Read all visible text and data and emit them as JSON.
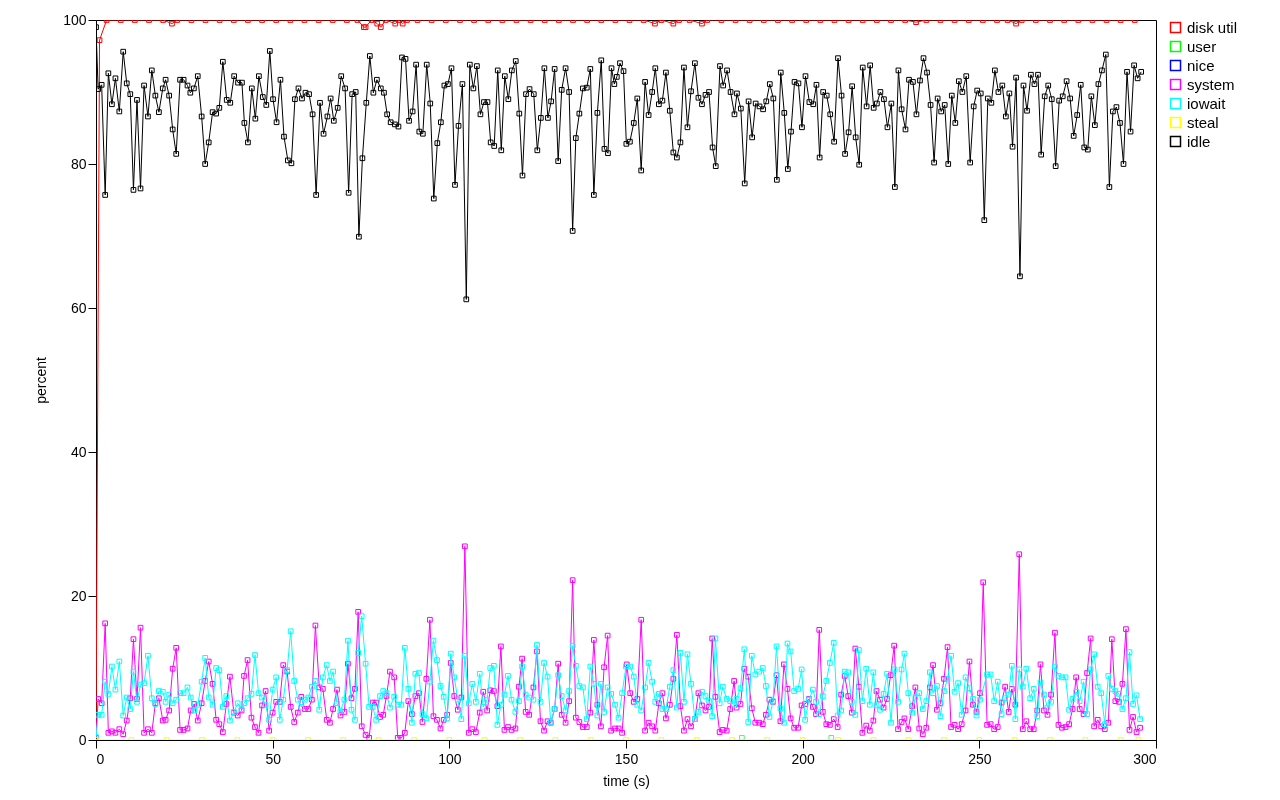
{
  "chart_data": {
    "type": "line",
    "xlabel": "time (s)",
    "ylabel": "percent",
    "xlim": [
      0,
      300
    ],
    "xticks": [
      0,
      50,
      100,
      150,
      200,
      250,
      300
    ],
    "ylim": [
      0,
      100
    ],
    "yticks": [
      0,
      20,
      40,
      60,
      80,
      100
    ],
    "grid": false,
    "legend": "top right",
    "marker": "square",
    "line_style": "solid",
    "series": [
      {
        "name": "disk util",
        "color": "#ff0000",
        "x": [
          0,
          1,
          3,
          7,
          11,
          15,
          19,
          21.5,
          23,
          27,
          31,
          35,
          39,
          43,
          47,
          51,
          55,
          59,
          63,
          67,
          71,
          74,
          75.8,
          76.3,
          78,
          79.6,
          80.6,
          82,
          84.7,
          85.8,
          86.8,
          88,
          91,
          95,
          99,
          103,
          107,
          111,
          115,
          119,
          123,
          127,
          131,
          135,
          139,
          143,
          147,
          151,
          155,
          158.2,
          160,
          163.4,
          165,
          168,
          171.5,
          173,
          177,
          181,
          185,
          189,
          193,
          197,
          201,
          205,
          209,
          213,
          217,
          221,
          225,
          229,
          232.1,
          235,
          239,
          243,
          247,
          251,
          255,
          258,
          260.4,
          262,
          266,
          270,
          274,
          278,
          282,
          286,
          290,
          294
        ],
        "values": [
          0,
          97.2,
          100,
          100,
          100,
          100,
          100,
          99.5,
          100,
          100,
          100,
          100,
          100,
          100,
          100,
          100,
          100,
          100,
          100,
          100,
          100,
          100,
          99,
          99,
          100,
          99.5,
          99,
          100,
          99.5,
          100,
          99.5,
          100,
          100,
          100,
          100,
          100,
          100,
          100,
          100,
          100,
          100,
          100,
          100,
          100,
          100,
          100,
          100,
          100,
          100,
          99.5,
          100,
          99.5,
          100,
          100,
          99.5,
          100,
          100,
          100,
          100,
          100,
          100,
          100,
          100,
          100,
          100,
          100,
          100,
          100,
          100,
          100,
          99.7,
          100,
          100,
          100,
          100,
          100,
          100,
          100,
          99.5,
          100,
          100,
          100,
          100,
          100,
          100,
          100,
          100,
          100
        ]
      },
      {
        "name": "user",
        "color": "#00ff00",
        "type": "scatter",
        "x": [
          182.8,
          195,
          208.1
        ],
        "values": [
          0.3,
          null,
          0.3
        ]
      },
      {
        "name": "nice",
        "color": "#0000ff"
      },
      {
        "name": "system",
        "color": "#ff00ff",
        "x": [
          0,
          0.6,
          1.6,
          2.6,
          3.5,
          4.5,
          5.5,
          6.6,
          7.7,
          8.7,
          9.7,
          10.6,
          11.6,
          12.6,
          13.6,
          14.7,
          15.8,
          16.8,
          17.8,
          18.9,
          19.7,
          20.7,
          21.7,
          22.7,
          23.8,
          24.8,
          25.9,
          26.8,
          27.8,
          28.8,
          29.9,
          30.9,
          31.9,
          33,
          34,
          34.9,
          35.9,
          36.9,
          37.9,
          39,
          40.1,
          41.2,
          41.9,
          42.9,
          44,
          45,
          46,
          47,
          48,
          49,
          50,
          51,
          52,
          53,
          54.1,
          55.1,
          56.1,
          57.1,
          58.1,
          59.1,
          60.1,
          61.1,
          62.1,
          63.2,
          64.2,
          65.3,
          66.2,
          67.1,
          68.2,
          69.2,
          70.3,
          71.3,
          72.3,
          73.3,
          74.2,
          75.2,
          76.3,
          77.3,
          78.3,
          79.3,
          80.4,
          81.3,
          82.2,
          83.2,
          84.4,
          85.4,
          86.4,
          87.4,
          88.4,
          89.4,
          90.4,
          91.4,
          92.4,
          93.5,
          94.5,
          95.5,
          96.5,
          97.5,
          98.4,
          99.4,
          100.4,
          101.4,
          102.4,
          103.4,
          104.4,
          105.5,
          106.5,
          107.5,
          108.6,
          109.6,
          110.7,
          111.6,
          112.6,
          113.6,
          114.6,
          115.6,
          116.6,
          117.6,
          118.7,
          119.7,
          120.6,
          121.6,
          122.6,
          123.8,
          124.8,
          125.8,
          126.8,
          127.8,
          128.7,
          129.8,
          130.8,
          131.8,
          132.9,
          133.9,
          134.9,
          135.8,
          136.8,
          137.8,
          138.9,
          139.9,
          140.9,
          141.9,
          142.9,
          143.8,
          144.8,
          145.8,
          146.9,
          147.9,
          148.9,
          150.2,
          151.2,
          152.2,
          153.2,
          154.3,
          155.4,
          156.4,
          157.4,
          158.3,
          159.3,
          160.3,
          161.3,
          162.4,
          163.4,
          164.4,
          165.4,
          166.4,
          167.4,
          168.4,
          169.5,
          170.5,
          171.5,
          172.5,
          173.5,
          174.4,
          175.3,
          176.5,
          177.4,
          178.5,
          179.5,
          180.6,
          181.3,
          182.4,
          183.5,
          184.6,
          185.6,
          186.6,
          187.7,
          188.7,
          189.6,
          190.6,
          191.6,
          192.6,
          193.7,
          194.7,
          195.7,
          196.6,
          197.6,
          198.7,
          199.7,
          200.7,
          201.8,
          202.9,
          203.8,
          204.7,
          205.7,
          206.7,
          207.7,
          208.8,
          209.9,
          210.9,
          211.9,
          212.9,
          213.9,
          214.9,
          215.9,
          216.9,
          218,
          219,
          220,
          220.9,
          221.9,
          222.9,
          223.9,
          224.9,
          225.9,
          227,
          228,
          228.8,
          229.9,
          231,
          231.9,
          233,
          234,
          235,
          236,
          236.9,
          238,
          239,
          240,
          241,
          242,
          243,
          244,
          245,
          246.1,
          247.2,
          248.2,
          249.2,
          250.2,
          251.1,
          252.2,
          253.2,
          254.2,
          255.2,
          256.3,
          257.3,
          258.3,
          259.2,
          260.2,
          261.3,
          262.3,
          263.3,
          264.4,
          265.4,
          266.4,
          267.3,
          268.3,
          269.3,
          270.3,
          271.4,
          272.4,
          273.4,
          274.4,
          275.4,
          276.4,
          277.4,
          278.4,
          279.5,
          280.5,
          281.5,
          282.5,
          283.5,
          284.5,
          285.5,
          286.5,
          287.5,
          288.5,
          289.5,
          290.5,
          291.5,
          292.5,
          293.5,
          294.5,
          295.5
        ],
        "values": [
          0.3,
          5.7,
          5.1,
          16.2,
          1,
          1.2,
          1,
          1.5,
          0.8,
          2.7,
          5.8,
          14,
          5.7,
          15.6,
          1,
          1.5,
          1,
          5.1,
          5.8,
          2.7,
          2.8,
          4.1,
          9.9,
          12.8,
          1.4,
          1.4,
          1.6,
          4.1,
          5,
          2.7,
          5.1,
          8.2,
          10.9,
          7.8,
          2.8,
          2.2,
          1.1,
          5,
          8.8,
          3.8,
          3.4,
          4.1,
          8.9,
          11.1,
          3.1,
          1.8,
          1,
          4.8,
          6.8,
          1.3,
          3.8,
          5.3,
          5.3,
          10.4,
          9.5,
          4.6,
          2.5,
          3.8,
          6,
          4.3,
          4.3,
          5.6,
          15.9,
          7.3,
          7.1,
          2.8,
          2.4,
          4.3,
          7,
          3.4,
          3.9,
          10.6,
          5.8,
          7.1,
          17.8,
          1.9,
          0.7,
          0.3,
          5.2,
          5.2,
          3.2,
          3.5,
          6.1,
          9.5,
          8.7,
          0.3,
          0.3,
          1,
          5.4,
          3.6,
          6.1,
          6.5,
          2.5,
          8.5,
          16.7,
          3.3,
          2.8,
          1.6,
          2.8,
          3.5,
          10.7,
          6.1,
          4.2,
          5.9,
          26.9,
          1,
          1.5,
          1.1,
          3.8,
          6.7,
          4.1,
          6.9,
          6.8,
          4.7,
          13,
          1.4,
          1.8,
          1.4,
          1.6,
          7.4,
          11.3,
          3.9,
          3.5,
          7.3,
          12.3,
          2.6,
          1.3,
          2.6,
          2.4,
          4.3,
          10.6,
          3.5,
          2.4,
          5.4,
          22.2,
          3.1,
          2.5,
          1.8,
          1.8,
          3.8,
          13.9,
          4.9,
          1.9,
          10.1,
          14.5,
          1.3,
          1.6,
          1.6,
          1,
          10.5,
          6.5,
          5.3,
          5.7,
          16.7,
          1.3,
          2.4,
          1.9,
          1.3,
          5.1,
          6.5,
          3,
          4.9,
          8.5,
          14.6,
          4.7,
          1.3,
          2.9,
          1.9,
          2.9,
          6.5,
          4.8,
          4.1,
          4.6,
          14.1,
          6,
          1.1,
          1.4,
          1.3,
          4.3,
          8.2,
          4.5,
          5,
          9.9,
          8.8,
          4.4,
          2.4,
          2.4,
          2.2,
          3.5,
          5.6,
          5.3,
          9,
          2.6,
          10.5,
          7.1,
          3,
          1.7,
          1.7,
          4.8,
          5,
          5.7,
          4.6,
          3.6,
          15.3,
          3.9,
          2.2,
          2.1,
          2.9,
          1.8,
          6.3,
          8.9,
          6.1,
          3.8,
          12.7,
          7.4,
          1,
          2,
          1.3,
          2.7,
          6.8,
          5.6,
          4.5,
          5.7,
          9,
          13.1,
          1.5,
          2.5,
          3,
          1.5,
          4.7,
          7.3,
          1.6,
          0.8,
          1.7,
          7.3,
          10.4,
          4.2,
          5.1,
          8.5,
          12.9,
          1.8,
          2.1,
          1.5,
          2.2,
          4.1,
          10.9,
          4.9,
          3.9,
          6.5,
          21.9,
          2.1,
          2.2,
          1.5,
          1.8,
          5.2,
          7.4,
          3.9,
          7.1,
          4.9,
          25.8,
          1.5,
          2.6,
          1.5,
          1.5,
          4.1,
          10.5,
          4.1,
          3.5,
          6.3,
          14.9,
          2.1,
          1.7,
          1.8,
          2.2,
          4.3,
          8.7,
          4.3,
          3.6,
          9.3,
          14.1,
          1.9,
          2.8,
          1.9,
          1.5,
          2.4,
          14,
          5.4,
          5.3,
          7.8,
          15.4,
          1.4,
          3.2,
          1.1,
          1.7
        ]
      },
      {
        "name": "iowait",
        "color": "#00ffff",
        "x": [
          0,
          0.6,
          1.6,
          2.6,
          3.5,
          4.5,
          5.5,
          6.6,
          7.7,
          8.7,
          9.7,
          10.6,
          11.6,
          12.6,
          13.6,
          14.7,
          15.8,
          16.8,
          17.8,
          18.9,
          19.7,
          20.7,
          21.7,
          22.7,
          23.8,
          24.8,
          25.9,
          26.8,
          27.8,
          28.8,
          29.9,
          30.9,
          31.9,
          33,
          34,
          34.9,
          35.9,
          36.9,
          37.9,
          39,
          40.1,
          41.2,
          41.9,
          42.9,
          44,
          45,
          46,
          47,
          48,
          49,
          50,
          51,
          52,
          53,
          54.1,
          55.1,
          56.1,
          57.1,
          58.1,
          59.1,
          60.1,
          61.1,
          62.1,
          63.2,
          64.2,
          65.3,
          66.2,
          67.1,
          68.2,
          69.2,
          70.3,
          71.3,
          72.3,
          73.3,
          74.2,
          75.2,
          76.3,
          77.3,
          78.3,
          79.3,
          80.4,
          81.3,
          82.2,
          83.2,
          84.4,
          85.4,
          86.4,
          87.4,
          88.4,
          89.4,
          90.4,
          91.4,
          92.4,
          93.5,
          94.5,
          95.5,
          96.5,
          97.5,
          98.4,
          99.4,
          100.4,
          101.4,
          102.4,
          103.4,
          104.4,
          105.5,
          106.5,
          107.5,
          108.6,
          109.6,
          110.7,
          111.6,
          112.6,
          113.6,
          114.6,
          115.6,
          116.6,
          117.6,
          118.7,
          119.7,
          120.6,
          121.6,
          122.6,
          123.8,
          124.8,
          125.8,
          126.8,
          127.8,
          128.7,
          129.8,
          130.8,
          131.8,
          132.9,
          133.9,
          134.9,
          135.8,
          136.8,
          137.8,
          138.9,
          139.9,
          140.9,
          141.9,
          142.9,
          143.8,
          144.8,
          145.8,
          146.9,
          147.9,
          148.9,
          150,
          151.2,
          152.2,
          153.2,
          154.3,
          155.4,
          156.4,
          157.4,
          158.3,
          159.3,
          160.3,
          161.3,
          162.4,
          163.4,
          164.4,
          165.4,
          166.4,
          167.4,
          168.4,
          169.5,
          170.5,
          171.5,
          172.5,
          173.5,
          174.4,
          175.3,
          176.5,
          177.4,
          178.5,
          179.5,
          180.6,
          181.3,
          182.4,
          183.5,
          184.6,
          185.6,
          186.6,
          187.7,
          188.7,
          189.6,
          190.6,
          191.6,
          192.6,
          193.7,
          194.7,
          195.7,
          196.6,
          197.6,
          198.7,
          199.7,
          200.7,
          201.8,
          202.9,
          203.8,
          204.7,
          205.7,
          206.7,
          207.7,
          208.8,
          209.9,
          210.9,
          211.9,
          212.9,
          213.9,
          214.9,
          215.9,
          216.9,
          218,
          219,
          220,
          220.9,
          221.9,
          222.9,
          223.9,
          225,
          226,
          227,
          228,
          228.8,
          229.9,
          231,
          231.9,
          233,
          234,
          235,
          236,
          236.9,
          238,
          239,
          240,
          241,
          242,
          243,
          244,
          245,
          246.1,
          247.2,
          248.2,
          249.2,
          250.2,
          252.2,
          253.2,
          254.2,
          255.2,
          256.3,
          257.3,
          258.3,
          259.2,
          260.2,
          261.3,
          262.3,
          263.3,
          264.4,
          265.4,
          266.4,
          267.3,
          268.3,
          269.3,
          270.3,
          271.4,
          272.4,
          273.4,
          274.4,
          275.4,
          276.4,
          277.4,
          278.4,
          279.5,
          280.5,
          281.5,
          282.5,
          283.5,
          284.5,
          285.5,
          286.5,
          287.5,
          288.5,
          289.5,
          290.5,
          291.5,
          292.5,
          293.5,
          294.5,
          295.5
        ],
        "values": [
          0.4,
          3.5,
          3.5,
          8.1,
          6.4,
          10.2,
          7,
          10.9,
          3.4,
          5.9,
          4.3,
          9.5,
          5.3,
          7.7,
          7.9,
          11.7,
          5.8,
          5,
          6.8,
          6.7,
          5.3,
          6.3,
          5.1,
          5.6,
          6.5,
          6.5,
          7.3,
          5.9,
          4.1,
          4.9,
          8.1,
          11.4,
          5.9,
          4.9,
          10,
          9.7,
          4.6,
          6.1,
          2.7,
          3.9,
          5.1,
          4.3,
          5.1,
          5.8,
          6.4,
          11.8,
          6.5,
          5.9,
          4.9,
          2.8,
          7,
          8.7,
          2.8,
          5.6,
          9.7,
          15.1,
          8.2,
          5.6,
          4.6,
          5.6,
          5.9,
          7.4,
          8.2,
          4.2,
          8.7,
          10.4,
          8.2,
          9.5,
          5.1,
          4,
          5.6,
          13.8,
          4.2,
          2.8,
          12.1,
          17.2,
          10.6,
          4.6,
          4.6,
          2.8,
          6.1,
          6.8,
          6.5,
          4.5,
          6,
          4.9,
          4.9,
          12.8,
          7.1,
          2.4,
          9.2,
          9.3,
          3.6,
          3,
          8.1,
          13.8,
          11.1,
          7.5,
          6,
          3,
          12,
          8.7,
          5.6,
          2.9,
          11.7,
          5.1,
          7.8,
          5.3,
          9.2,
          4.6,
          5.6,
          10,
          10.3,
          2.1,
          4.9,
          6.3,
          8.9,
          5.6,
          3.9,
          5.4,
          10.2,
          6.3,
          5.9,
          5.6,
          13.2,
          5.3,
          10.7,
          8.8,
          2.5,
          4.3,
          9,
          6.1,
          4.1,
          6.8,
          13.1,
          10.3,
          7.5,
          7.3,
          2.9,
          10.2,
          7.8,
          3.4,
          7.8,
          3.9,
          7.3,
          6.4,
          4.9,
          3.1,
          6.5,
          10.2,
          10.2,
          8.8,
          4.9,
          4.1,
          7.3,
          10.7,
          8.1,
          5.3,
          6.4,
          4.3,
          4.3,
          7.4,
          9.7,
          4.5,
          12.1,
          5.3,
          11.9,
          7.8,
          2.9,
          3.9,
          6.7,
          6.1,
          5.4,
          3.3,
          14.1,
          5.1,
          7.4,
          5.7,
          5.4,
          4.9,
          5.7,
          7.2,
          12.6,
          2.5,
          11.7,
          9.1,
          9.5,
          10,
          7.5,
          3.2,
          5.4,
          13,
          4.4,
          2.4,
          13.4,
          12.3,
          6.8,
          7.1,
          9.8,
          2.8,
          5.6,
          7,
          5.3,
          3.6,
          6.1,
          8.2,
          10.7,
          13.5,
          3.4,
          4.1,
          9.5,
          9.4,
          5.3,
          3.5,
          12.5,
          5.4,
          9.9,
          4.9,
          9.4,
          4.8,
          4.2,
          6.4,
          9.2,
          2.4,
          9.8,
          5.3,
          9.8,
          12,
          6.5,
          3.8,
          5.9,
          6.5,
          4.3,
          5.4,
          9.4,
          6.5,
          7.5,
          3.3,
          6.8,
          8.5,
          11.7,
          6.7,
          7.9,
          3.5,
          8.7,
          7.2,
          5.7,
          3.4,
          5.6,
          9.1,
          9.1,
          5.4,
          8.1,
          3.6,
          5.8,
          6.3,
          10.3,
          2.9,
          9.8,
          7.4,
          9.9,
          5.8,
          7.1,
          3.3,
          8,
          6.3,
          4.5,
          5.3,
          10.2,
          8.9,
          8.7,
          8.7,
          4.2,
          5.7,
          6.7,
          5.4,
          8.1,
          3.6,
          9.8,
          11.9,
          7.4,
          6.5,
          2.2,
          8.9,
          7.1,
          6.8,
          6.4,
          4.3,
          5.8,
          12.2,
          5,
          6.2,
          2.9
        ]
      },
      {
        "name": "steal",
        "color": "#ffff00",
        "x": [
          0,
          10,
          20,
          30,
          40,
          50,
          60,
          70,
          80,
          90,
          100,
          110,
          120,
          130,
          140,
          150,
          160,
          170,
          180,
          190,
          200,
          210,
          220,
          230,
          240,
          250,
          260,
          270,
          280,
          290,
          295
        ],
        "values": [
          0,
          0,
          0,
          0,
          0,
          0,
          0,
          0,
          0,
          0,
          0,
          0,
          0,
          0,
          0,
          0,
          0,
          0,
          0,
          0,
          0,
          0,
          0,
          0,
          0,
          0,
          0,
          0,
          0,
          0,
          0
        ]
      },
      {
        "name": "idle",
        "color": "#000000",
        "x": [
          0,
          0.6,
          1.6,
          2.6,
          3.5,
          4.5,
          5.5,
          6.6,
          7.7,
          8.7,
          9.7,
          10.6,
          11.6,
          12.6,
          13.6,
          14.7,
          15.8,
          16.8,
          17.8,
          18.9,
          19.7,
          20.7,
          21.7,
          22.7,
          23.8,
          24.8,
          25.9,
          26.7,
          27.7,
          28.8,
          29.9,
          30.9,
          31.9,
          33,
          34,
          34.9,
          35.9,
          37,
          38,
          39.1,
          40.2,
          41.3,
          42,
          43,
          44.1,
          45.1,
          46.1,
          47.2,
          48.2,
          49.2,
          50.1,
          51.1,
          52.2,
          53.2,
          54.3,
          55.3,
          56.3,
          57.3,
          58.3,
          59.3,
          60.3,
          61.3,
          62.3,
          63.4,
          64.4,
          65.5,
          66.4,
          67.3,
          68.4,
          69.4,
          70.5,
          71.5,
          72.5,
          73.5,
          74.4,
          75.4,
          76.5,
          77.5,
          78.5,
          79.5,
          80.6,
          81.5,
          82.4,
          83.4,
          84.6,
          85.6,
          86.6,
          87.6,
          88.6,
          89.6,
          90.6,
          91.5,
          92.5,
          93.6,
          94.6,
          95.6,
          96.6,
          97.6,
          98.6,
          99.6,
          100.6,
          101.6,
          102.6,
          103.7,
          104.8,
          105.8,
          106.8,
          107.8,
          108.8,
          109.8,
          110.8,
          111.7,
          112.7,
          113.7,
          114.7,
          115.7,
          116.7,
          117.7,
          118.8,
          119.8,
          120.7,
          121.7,
          122.7,
          123.9,
          124.9,
          125.9,
          126.9,
          127.9,
          128.8,
          129.8,
          130.8,
          131.8,
          132.9,
          133.9,
          134.9,
          135.8,
          136.8,
          137.8,
          138.9,
          139.9,
          140.9,
          141.9,
          143,
          143.9,
          144.9,
          145.9,
          146.7,
          147.4,
          148.3,
          149.3,
          150.1,
          151.1,
          152.2,
          153.2,
          154.3,
          155.4,
          156.4,
          157.4,
          158.3,
          159.3,
          160.3,
          161.3,
          162.4,
          163.4,
          164.4,
          165.4,
          166.4,
          167.4,
          168.4,
          169.5,
          170.5,
          171.5,
          172.5,
          173.5,
          174.5,
          175.4,
          176.6,
          177.5,
          178.6,
          179.6,
          180.7,
          181.4,
          182.5,
          183.6,
          184.7,
          185.7,
          186.7,
          187.8,
          188.8,
          189.7,
          190.7,
          191.7,
          192.7,
          193.8,
          194.8,
          195.8,
          196.7,
          197.7,
          198.8,
          199.8,
          200.8,
          201.9,
          203,
          203.9,
          204.8,
          205.8,
          206.8,
          207.8,
          208.9,
          210,
          211,
          212,
          213,
          214,
          215,
          216,
          217,
          218.1,
          219.1,
          220.1,
          221,
          222,
          223,
          224,
          225.1,
          226.1,
          227.1,
          228,
          229.1,
          230.1,
          231.2,
          232.2,
          233.2,
          234.2,
          235.2,
          236.2,
          237.2,
          238.2,
          239.2,
          240.2,
          241.2,
          242.2,
          243.2,
          244.2,
          245.2,
          246.3,
          247.4,
          248.4,
          249.4,
          250.4,
          251.4,
          252.4,
          253.4,
          254.4,
          255.4,
          256.5,
          257.5,
          258.5,
          259.4,
          260.4,
          261.5,
          262.5,
          263.5,
          264.6,
          265.6,
          266.6,
          267.5,
          268.5,
          269.5,
          270.5,
          271.6,
          272.6,
          273.6,
          274.7,
          275.7,
          276.7,
          277.7,
          278.7,
          279.7,
          280.7,
          281.7,
          282.7,
          283.7,
          284.7,
          285.8,
          286.8,
          287.8,
          288.8,
          289.8,
          290.8,
          291.8,
          292.8,
          293.8,
          294.8,
          295.8
        ],
        "values": [
          99,
          90.4,
          91,
          75.7,
          92.6,
          88.3,
          91.9,
          87.3,
          95.6,
          91.2,
          89.7,
          76.4,
          88.9,
          76.6,
          90.9,
          86.6,
          93,
          89.5,
          87.2,
          90.5,
          91.7,
          89.5,
          84.8,
          81.4,
          91.7,
          91.7,
          90.9,
          89.9,
          90.5,
          92.2,
          86.6,
          80,
          83,
          87.2,
          87,
          87.8,
          94.2,
          88.9,
          88.5,
          92.2,
          91.3,
          91.3,
          85.7,
          83,
          90.5,
          86.3,
          92.2,
          89.3,
          88.2,
          95.7,
          89,
          85.8,
          91.7,
          83.8,
          80.5,
          80.1,
          89,
          90.5,
          89.1,
          89.9,
          89.7,
          86.9,
          75.7,
          88.5,
          84.2,
          86.6,
          89.1,
          86,
          87.8,
          92.2,
          90.5,
          76,
          89.7,
          90,
          69.9,
          80.8,
          88.5,
          95,
          89.9,
          91.7,
          90.5,
          89.9,
          86.9,
          85.8,
          85.5,
          85.2,
          94.8,
          94.6,
          86,
          87.3,
          93.8,
          84.5,
          84.2,
          93.8,
          88.4,
          75.2,
          82.9,
          85.8,
          90.9,
          91.1,
          93.3,
          77.1,
          85.3,
          91.1,
          61.2,
          93.8,
          90.5,
          93.6,
          86.9,
          88.6,
          88.6,
          83,
          82.5,
          93,
          81.9,
          92.2,
          89,
          93,
          94.3,
          87,
          78.4,
          89.7,
          90.4,
          89.7,
          81.9,
          86.4,
          93.3,
          86.4,
          88.7,
          93.2,
          80.4,
          90.3,
          93.3,
          90,
          70.7,
          83.6,
          87,
          90.5,
          90.6,
          93.2,
          75.7,
          87.1,
          94.4,
          82.1,
          81.5,
          93.3,
          91.1,
          92.1,
          94,
          92.9,
          82.8,
          83.1,
          85.7,
          89.1,
          79.1,
          91.4,
          86.8,
          90,
          93.3,
          88.3,
          88.8,
          92.7,
          87.4,
          81.6,
          80.9,
          83,
          93.4,
          85.1,
          90.1,
          94,
          89.2,
          88.3,
          89.6,
          90,
          82.3,
          79.7,
          93.6,
          90.9,
          93,
          90,
          86.9,
          89.8,
          87.7,
          77.3,
          88.7,
          83.7,
          88.4,
          88,
          87.6,
          88.7,
          91.1,
          89.1,
          77.8,
          92.7,
          87.1,
          79.3,
          84.5,
          91.4,
          91.2,
          85.1,
          92.2,
          88.6,
          88.3,
          91,
          80.9,
          90,
          89.5,
          86.9,
          83.1,
          94.7,
          89.5,
          81.4,
          84.4,
          90.8,
          83.7,
          79.9,
          93.4,
          88,
          93.7,
          87.8,
          88.4,
          90,
          89,
          85.1,
          88.4,
          76.8,
          93,
          87.6,
          84.8,
          91.7,
          91.4,
          86.9,
          91.6,
          94.7,
          92.7,
          88.2,
          80.2,
          89.1,
          87.3,
          88.2,
          80,
          89.5,
          85.7,
          91.5,
          90,
          92.2,
          80.2,
          88,
          90.2,
          89.8,
          72.2,
          89.1,
          88.5,
          93,
          90,
          90.9,
          86.6,
          89.8,
          82.4,
          92,
          64.4,
          90.9,
          87.4,
          92.4,
          91.1,
          92.4,
          81.3,
          89.4,
          90.9,
          89,
          79.7,
          88.8,
          89.4,
          91.5,
          89.1,
          83.9,
          86.8,
          91,
          82.3,
          82,
          89.4,
          85.4,
          91.1,
          93,
          95.2,
          76.8,
          87.3,
          87.9,
          85.7,
          80,
          92.8,
          84.5,
          93.7,
          91.9,
          92.8
        ]
      }
    ]
  }
}
